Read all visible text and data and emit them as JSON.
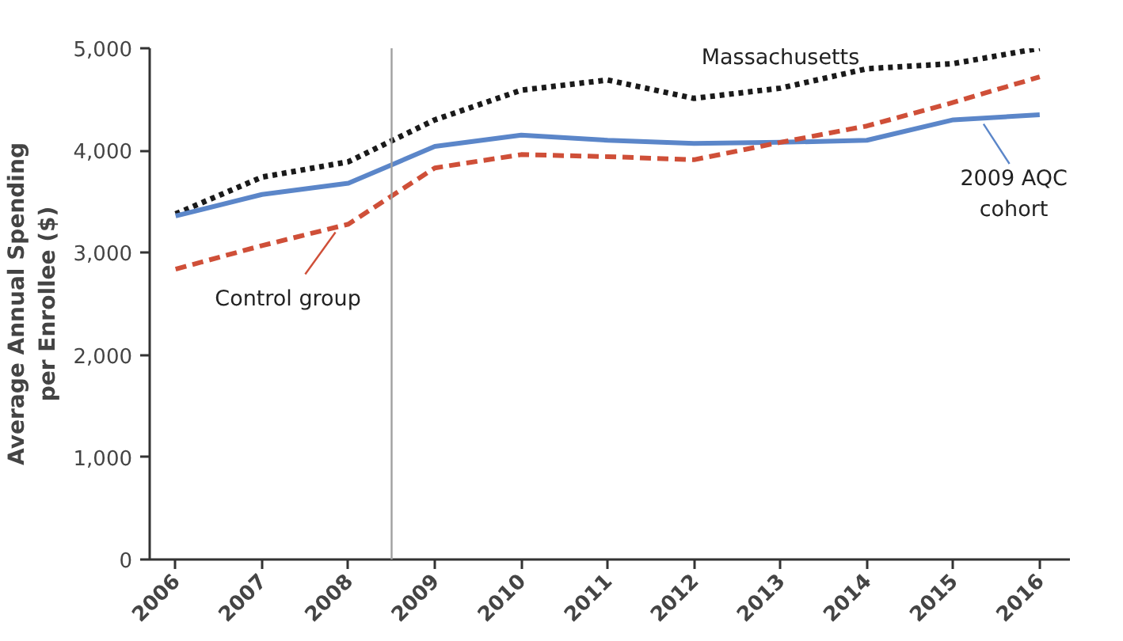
{
  "chart_data": {
    "type": "line",
    "ylabel": "Average Annual Spending\nper Enrollee ($)",
    "x": [
      2006,
      2007,
      2008,
      2009,
      2010,
      2011,
      2012,
      2013,
      2014,
      2015,
      2016
    ],
    "xlim": [
      2005.7,
      2016.35
    ],
    "xticks": [
      {
        "value": 2006,
        "label": "2006"
      },
      {
        "value": 2007,
        "label": "2007"
      },
      {
        "value": 2008,
        "label": "2008"
      },
      {
        "value": 2009,
        "label": "2009"
      },
      {
        "value": 2010,
        "label": "2010"
      },
      {
        "value": 2011,
        "label": "2011"
      },
      {
        "value": 2012,
        "label": "2012"
      },
      {
        "value": 2013,
        "label": "2013"
      },
      {
        "value": 2014,
        "label": "2014"
      },
      {
        "value": 2015,
        "label": "2015"
      },
      {
        "value": 2016,
        "label": "2016"
      }
    ],
    "ylim": [
      0,
      5000
    ],
    "yticks": [
      0,
      {
        "value": 1000,
        "label": "1,000"
      },
      {
        "value": 2000,
        "label": "2,000"
      },
      {
        "value": 3000,
        "label": "3,000"
      },
      {
        "value": 4000,
        "label": "4,000"
      },
      {
        "value": 5000,
        "label": "5,000"
      }
    ],
    "series": [
      {
        "name": "Massachusetts",
        "color": "#1a1a1a",
        "line_style": "dotted",
        "values": [
          3380,
          3740,
          3890,
          4300,
          4590,
          4690,
          4510,
          4610,
          4800,
          4850,
          5000
        ]
      },
      {
        "name": "2009 AQC\ncohort",
        "color": "#5b86c9",
        "line_style": "solid",
        "values": [
          3360,
          3570,
          3680,
          4040,
          4150,
          4100,
          4070,
          4080,
          4100,
          4300,
          4350
        ]
      },
      {
        "name": "Control group",
        "color": "#cf4f38",
        "line_style": "dashed",
        "values": [
          2840,
          3070,
          3280,
          3830,
          3960,
          3940,
          3910,
          4080,
          4240,
          4470,
          4720
        ]
      }
    ],
    "ref_lines": [
      {
        "axis": "x",
        "value": 2008.5,
        "color": "#a0a0a0"
      }
    ],
    "grid": false,
    "legend": "right"
  }
}
